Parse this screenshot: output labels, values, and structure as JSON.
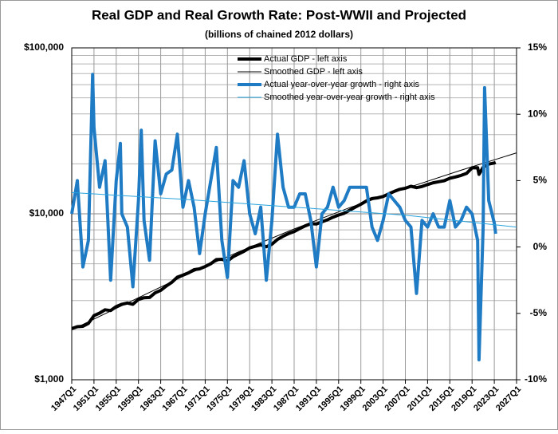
{
  "chart_data": {
    "type": "line",
    "title": "Real GDP and Real Growth Rate: Post-WWII and Projected",
    "subtitle": "(billions of chained 2012 dollars)",
    "ylog": true,
    "ylim": [
      1000,
      100000
    ],
    "yticks": [
      {
        "value": 1000,
        "label": "$1,000"
      },
      {
        "value": 10000,
        "label": "$10,000"
      },
      {
        "value": 100000,
        "label": "$100,000"
      }
    ],
    "yminorticks": [
      2000,
      3000,
      4000,
      5000,
      6000,
      7000,
      8000,
      9000,
      20000,
      30000,
      40000,
      50000,
      60000,
      70000,
      80000,
      90000
    ],
    "y2lim": [
      -10,
      15
    ],
    "y2ticks": [
      {
        "value": -10,
        "label": "-10%"
      },
      {
        "value": -5,
        "label": "-5%"
      },
      {
        "value": 0,
        "label": "0%"
      },
      {
        "value": 5,
        "label": "5%"
      },
      {
        "value": 10,
        "label": "10%"
      },
      {
        "value": 15,
        "label": "15%"
      }
    ],
    "xlim": [
      1947,
      2027
    ],
    "xticks": [
      {
        "value": 1947,
        "label": "1947Q1"
      },
      {
        "value": 1951,
        "label": "1951Q1"
      },
      {
        "value": 1955,
        "label": "1955Q1"
      },
      {
        "value": 1959,
        "label": "1959Q1"
      },
      {
        "value": 1963,
        "label": "1963Q1"
      },
      {
        "value": 1967,
        "label": "1967Q1"
      },
      {
        "value": 1971,
        "label": "1971Q1"
      },
      {
        "value": 1975,
        "label": "1975Q1"
      },
      {
        "value": 1979,
        "label": "1979Q1"
      },
      {
        "value": 1983,
        "label": "1983Q1"
      },
      {
        "value": 1987,
        "label": "1987Q1"
      },
      {
        "value": 1991,
        "label": "1991Q1"
      },
      {
        "value": 1995,
        "label": "1995Q1"
      },
      {
        "value": 1999,
        "label": "1999Q1"
      },
      {
        "value": 2003,
        "label": "2003Q1"
      },
      {
        "value": 2007,
        "label": "2007Q1"
      },
      {
        "value": 2011,
        "label": "2011Q1"
      },
      {
        "value": 2015,
        "label": "2015Q1"
      },
      {
        "value": 2019,
        "label": "2019Q1"
      },
      {
        "value": 2023,
        "label": "2023Q1"
      },
      {
        "value": 2027,
        "label": "2027Q1"
      }
    ],
    "grid": true,
    "legend": "upper right",
    "series": [
      {
        "name": "Actual GDP - left axis",
        "color": "#000000",
        "width": 4,
        "x": [
          1947,
          1948,
          1949,
          1950,
          1951,
          1952,
          1953,
          1954,
          1955,
          1956,
          1957,
          1958,
          1959,
          1960,
          1961,
          1962,
          1963,
          1964,
          1965,
          1966,
          1967,
          1968,
          1969,
          1970,
          1971,
          1972,
          1973,
          1974,
          1975,
          1976,
          1977,
          1978,
          1979,
          1980,
          1981,
          1982,
          1983,
          1984,
          1985,
          1986,
          1987,
          1988,
          1989,
          1990,
          1991,
          1992,
          1993,
          1994,
          1995,
          1996,
          1997,
          1998,
          1999,
          2000,
          2001,
          2002,
          2003,
          2004,
          2005,
          2006,
          2007,
          2008,
          2009,
          2010,
          2011,
          2012,
          2013,
          2014,
          2015,
          2016,
          2017,
          2018,
          2019,
          2020,
          2020.25,
          2021,
          2022,
          2023,
          2023.25
        ],
        "values": [
          2033,
          2087,
          2100,
          2185,
          2435,
          2520,
          2640,
          2610,
          2760,
          2850,
          2900,
          2850,
          3050,
          3120,
          3130,
          3340,
          3460,
          3670,
          3870,
          4150,
          4270,
          4410,
          4610,
          4660,
          4810,
          5000,
          5300,
          5320,
          5180,
          5510,
          5730,
          5950,
          6230,
          6370,
          6500,
          6330,
          6560,
          7010,
          7330,
          7600,
          7810,
          8150,
          8460,
          8720,
          8680,
          8950,
          9200,
          9550,
          9830,
          10080,
          10520,
          10980,
          11420,
          11950,
          12360,
          12480,
          12720,
          13190,
          13650,
          14050,
          14270,
          14650,
          14370,
          14600,
          15020,
          15380,
          15610,
          15830,
          16380,
          16680,
          17030,
          17500,
          18930,
          18950,
          17300,
          19060,
          19920,
          20250,
          20400
        ]
      },
      {
        "name": "Smoothed GDP - left axis",
        "color": "#000000",
        "width": 1,
        "x": [
          1947,
          1957,
          1967,
          1977,
          1987,
          1997,
          2007,
          2017,
          2027
        ],
        "values": [
          2000,
          2900,
          4200,
          5900,
          8100,
          10900,
          14200,
          18300,
          23300
        ]
      },
      {
        "name": "Actual year-over-year growth - right axis",
        "color": "#1f7bc4",
        "width": 4,
        "axis": "y2",
        "x": [
          1947,
          1948,
          1949,
          1950,
          1950.75,
          1951,
          1952,
          1953,
          1954,
          1955,
          1955.75,
          1956,
          1957,
          1958,
          1959,
          1959.5,
          1960,
          1961,
          1962,
          1963,
          1964,
          1965,
          1966,
          1967,
          1968,
          1969,
          1970,
          1971,
          1972,
          1973,
          1974,
          1975,
          1976,
          1977,
          1978,
          1979,
          1980,
          1981,
          1982,
          1983,
          1984,
          1985,
          1986,
          1987,
          1988,
          1989,
          1990,
          1991,
          1992,
          1993,
          1994,
          1995,
          1996,
          1997,
          1998,
          1999,
          2000,
          2001,
          2002,
          2003,
          2004,
          2005,
          2006,
          2007,
          2008,
          2009,
          2010,
          2011,
          2012,
          2013,
          2014,
          2015,
          2016,
          2017,
          2018,
          2019,
          2020,
          2020.25,
          2021,
          2021.25,
          2022,
          2023,
          2023.25
        ],
        "values": [
          2.5,
          5,
          -1.5,
          0.5,
          13,
          9,
          4.5,
          6.5,
          -2.5,
          5,
          7.8,
          2.5,
          1.5,
          -3,
          3.5,
          8.8,
          2,
          -1,
          8,
          4,
          5.5,
          5.8,
          8.5,
          3,
          5,
          3,
          -0.5,
          2.5,
          5,
          7.5,
          0.5,
          -2.3,
          5,
          4.5,
          6.5,
          2.5,
          1,
          3,
          -2.5,
          2,
          8.5,
          4.5,
          3,
          3,
          4,
          4,
          2,
          -1.5,
          2.5,
          3,
          4.5,
          3,
          3.5,
          4.5,
          4.5,
          4.5,
          4.5,
          1.5,
          0.5,
          2,
          4,
          3.5,
          3,
          2,
          1.5,
          -3.5,
          2,
          1.5,
          2.5,
          1.5,
          1.5,
          3.5,
          1.5,
          2,
          3,
          2.5,
          0.5,
          -8.5,
          1.5,
          12,
          3.5,
          1.8,
          1
        ]
      },
      {
        "name": "Smoothed year-over-year growth - right axis",
        "color": "#29a3dc",
        "width": 1,
        "axis": "y2",
        "x": [
          1947,
          1967,
          1987,
          2007,
          2027
        ],
        "values": [
          4.1,
          3.6,
          3.0,
          2.4,
          1.5
        ]
      }
    ]
  }
}
